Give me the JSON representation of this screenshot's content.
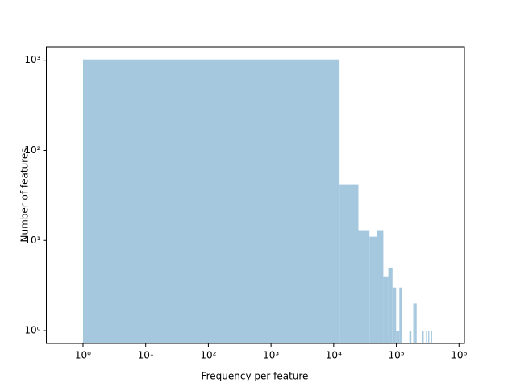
{
  "chart_data": {
    "type": "histogram",
    "x_label": "Frequency per feature",
    "y_label": "Number of features",
    "bins": [
      1,
      12401,
      24801,
      37201,
      49601,
      62001,
      74401,
      86801,
      99201,
      111601,
      124001,
      136401,
      148801,
      161201,
      173601,
      186001,
      198401,
      210801,
      223201,
      235601,
      248001,
      260401,
      272801,
      285201,
      297601,
      310001,
      322401,
      334801,
      347201,
      359601,
      372001
    ],
    "values": [
      1020,
      42,
      13,
      11,
      13,
      4,
      5,
      3,
      1,
      3,
      0,
      0,
      0,
      1,
      0,
      2,
      2,
      0,
      0,
      0,
      0,
      1,
      0,
      0,
      1,
      0,
      1,
      0,
      0,
      1
    ],
    "color": "#a6c8df",
    "xlog": true,
    "ylog": true,
    "xlim": [
      0.26,
      1220000
    ],
    "ylim": [
      0.72,
      1410
    ],
    "xticks": [
      {
        "value": 1,
        "label": "10⁰"
      },
      {
        "value": 10,
        "label": "10¹"
      },
      {
        "value": 100,
        "label": "10²"
      },
      {
        "value": 1000,
        "label": "10³"
      },
      {
        "value": 10000,
        "label": "10⁴"
      },
      {
        "value": 100000,
        "label": "10⁵"
      },
      {
        "value": 1000000,
        "label": "10⁶"
      }
    ],
    "yticks": [
      {
        "value": 1,
        "label": "10⁰"
      },
      {
        "value": 10,
        "label": "10¹"
      },
      {
        "value": 100,
        "label": "10²"
      },
      {
        "value": 1000,
        "label": "10³"
      }
    ]
  }
}
